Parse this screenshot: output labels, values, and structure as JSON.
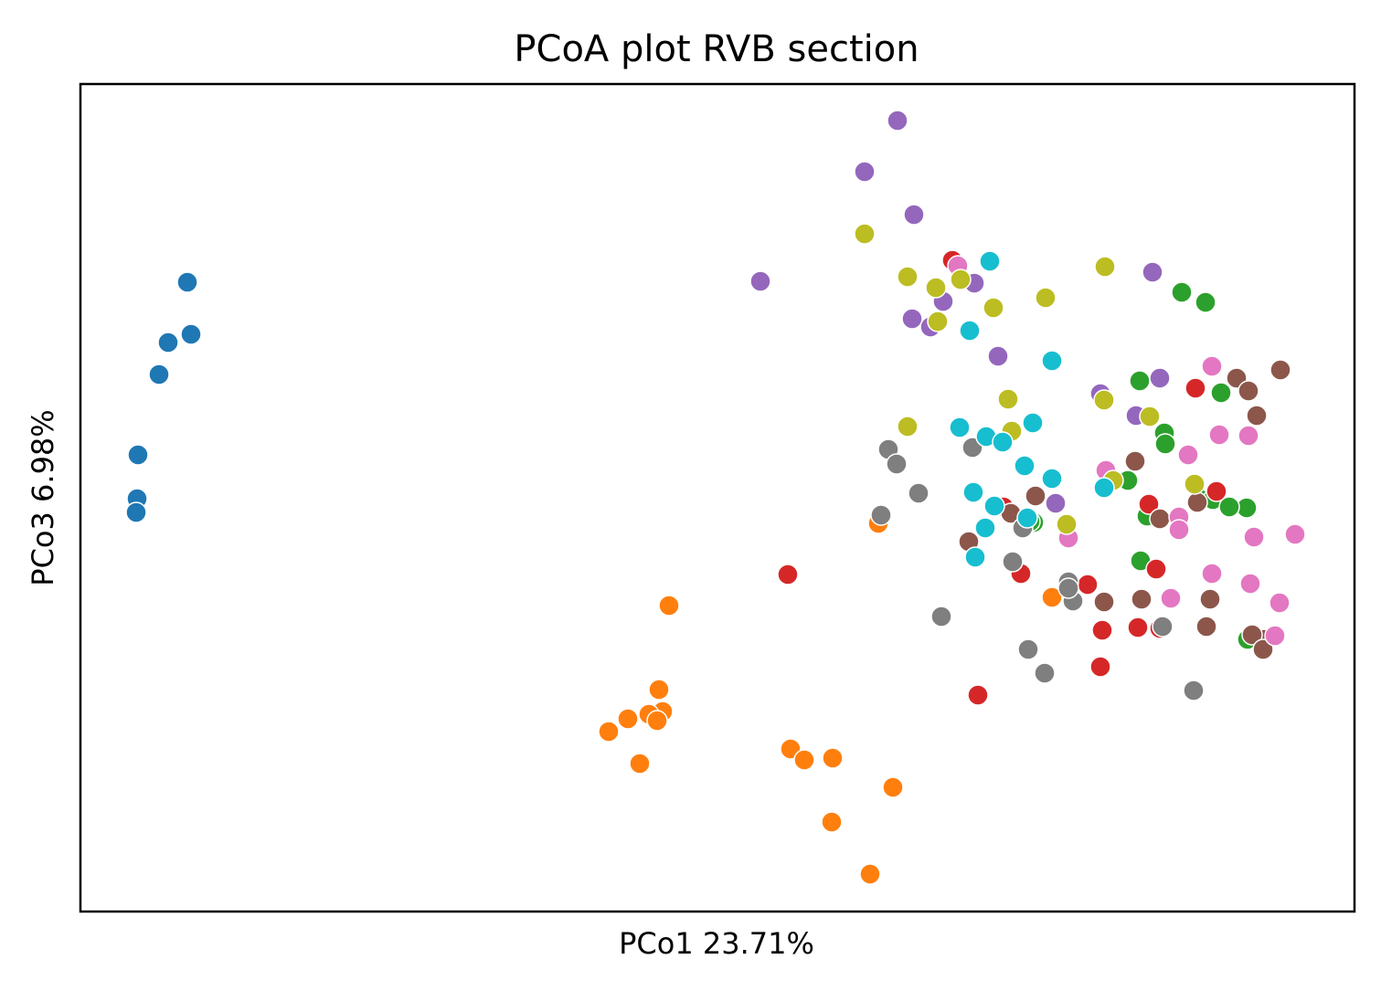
{
  "chart_data": {
    "type": "scatter",
    "title": "PCoA plot RVB section",
    "xlabel": "PCo1 23.71%",
    "ylabel": "PCo3 6.98%",
    "xlim": [
      0,
      1394
    ],
    "ylim": [
      0,
      906
    ],
    "xticks": [],
    "yticks": [],
    "grid": false,
    "legend": "none",
    "series": [
      {
        "color": "#1f77b4",
        "points": [
          [
            117,
            689
          ],
          [
            121,
            632
          ],
          [
            86,
            588
          ],
          [
            96,
            623
          ],
          [
            63,
            500
          ],
          [
            62,
            452
          ],
          [
            61,
            437
          ]
        ]
      },
      {
        "color": "#ff7f0e",
        "points": [
          [
            644,
            335
          ],
          [
            633,
            243
          ],
          [
            637,
            219
          ],
          [
            622,
            216
          ],
          [
            631,
            209
          ],
          [
            599,
            211
          ],
          [
            578,
            197
          ],
          [
            612,
            162
          ],
          [
            777,
            178
          ],
          [
            792,
            166
          ],
          [
            823,
            168
          ],
          [
            889,
            136
          ],
          [
            822,
            98
          ],
          [
            864,
            41
          ],
          [
            873,
            425
          ],
          [
            1063,
            344
          ]
        ]
      },
      {
        "color": "#2ca02c",
        "points": [
          [
            1205,
            678
          ],
          [
            1159,
            581
          ],
          [
            1231,
            667
          ],
          [
            1160,
            384
          ],
          [
            1248,
            568
          ],
          [
            1186,
            524
          ],
          [
            1187,
            512
          ],
          [
            1146,
            472
          ],
          [
            1167,
            433
          ],
          [
            1224,
            452
          ],
          [
            1239,
            451
          ],
          [
            1276,
            442
          ],
          [
            1257,
            443
          ],
          [
            1043,
            426
          ],
          [
            1277,
            298
          ],
          [
            1039,
            427
          ]
        ]
      },
      {
        "color": "#d62728",
        "points": [
          [
            954,
            713
          ],
          [
            1010,
            443
          ],
          [
            774,
            369
          ],
          [
            1220,
            573
          ],
          [
            1243,
            460
          ],
          [
            1169,
            446
          ],
          [
            1177,
            375
          ],
          [
            1029,
            370
          ],
          [
            1102,
            358
          ],
          [
            1119,
            340
          ],
          [
            1157,
            311
          ],
          [
            1118,
            308
          ],
          [
            1181,
            310
          ],
          [
            982,
            237
          ],
          [
            1116,
            268
          ]
        ]
      },
      {
        "color": "#9467bd",
        "points": [
          [
            894,
            866
          ],
          [
            858,
            810
          ],
          [
            912,
            763
          ],
          [
            744,
            690
          ],
          [
            906,
            696
          ],
          [
            978,
            688
          ],
          [
            944,
            668
          ],
          [
            910,
            649
          ],
          [
            930,
            640
          ],
          [
            1004,
            608
          ],
          [
            1173,
            700
          ],
          [
            1181,
            584
          ],
          [
            1116,
            567
          ],
          [
            1155,
            543
          ],
          [
            1067,
            447
          ]
        ]
      },
      {
        "color": "#8c564b",
        "points": [
          [
            1313,
            593
          ],
          [
            1265,
            584
          ],
          [
            1278,
            570
          ],
          [
            1287,
            543
          ],
          [
            1154,
            493
          ],
          [
            1045,
            455
          ],
          [
            1222,
            448
          ],
          [
            1181,
            430
          ],
          [
            972,
            405
          ],
          [
            1120,
            339
          ],
          [
            1236,
            342
          ],
          [
            1295,
            298
          ],
          [
            1282,
            303
          ],
          [
            1232,
            312
          ],
          [
            1161,
            342
          ],
          [
            1018,
            436
          ],
          [
            1294,
            287
          ]
        ]
      },
      {
        "color": "#e377c2",
        "points": [
          [
            960,
            707
          ],
          [
            1238,
            597
          ],
          [
            1246,
            522
          ],
          [
            1278,
            521
          ],
          [
            1212,
            500
          ],
          [
            1122,
            483
          ],
          [
            1202,
            432
          ],
          [
            1081,
            409
          ],
          [
            1329,
            413
          ],
          [
            1284,
            410
          ],
          [
            1238,
            370
          ],
          [
            1193,
            343
          ],
          [
            1280,
            359
          ],
          [
            1312,
            338
          ],
          [
            1307,
            302
          ],
          [
            1202,
            418
          ]
        ]
      },
      {
        "color": "#7f7f7f",
        "points": [
          [
            884,
            506
          ],
          [
            893,
            490
          ],
          [
            917,
            458
          ],
          [
            876,
            434
          ],
          [
            976,
            508
          ],
          [
            1031,
            420
          ],
          [
            1020,
            383
          ],
          [
            1081,
            361
          ],
          [
            1086,
            340
          ],
          [
            942,
            323
          ],
          [
            1037,
            287
          ],
          [
            1055,
            261
          ],
          [
            1218,
            242
          ],
          [
            1184,
            312
          ],
          [
            1081,
            354
          ]
        ]
      },
      {
        "color": "#bcbd22",
        "points": [
          [
            858,
            742
          ],
          [
            1121,
            706
          ],
          [
            905,
            695
          ],
          [
            936,
            683
          ],
          [
            963,
            692
          ],
          [
            938,
            646
          ],
          [
            999,
            661
          ],
          [
            1056,
            672
          ],
          [
            1015,
            561
          ],
          [
            1019,
            526
          ],
          [
            905,
            531
          ],
          [
            1120,
            560
          ],
          [
            1170,
            542
          ],
          [
            1130,
            472
          ],
          [
            1079,
            424
          ],
          [
            1219,
            468
          ]
        ]
      },
      {
        "color": "#17becf",
        "points": [
          [
            995,
            712
          ],
          [
            973,
            636
          ],
          [
            1063,
            603
          ],
          [
            962,
            530
          ],
          [
            991,
            520
          ],
          [
            1009,
            514
          ],
          [
            1042,
            535
          ],
          [
            1033,
            488
          ],
          [
            1063,
            474
          ],
          [
            977,
            459
          ],
          [
            1120,
            464
          ],
          [
            990,
            420
          ],
          [
            1036,
            431
          ],
          [
            979,
            388
          ],
          [
            1000,
            444
          ]
        ]
      }
    ]
  }
}
